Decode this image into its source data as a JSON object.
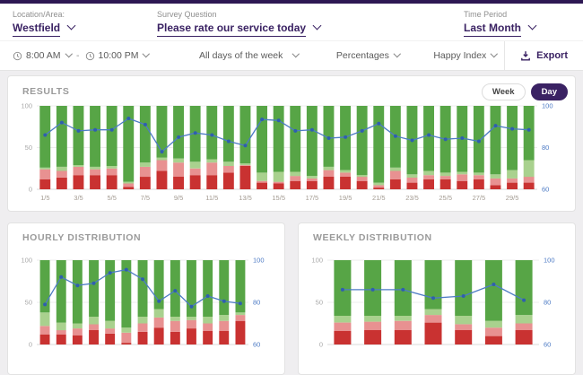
{
  "header": {
    "filters": [
      {
        "label": "Location/Area:",
        "value": "Westfield"
      },
      {
        "label": "Survey Question",
        "value": "Please rate our service today"
      },
      {
        "label": "Time Period",
        "value": "Last Month"
      }
    ]
  },
  "toolbar": {
    "time_from": "8:00 AM",
    "time_separator": "-",
    "time_to": "10:00 PM",
    "days_filter": "All days of the week",
    "metric_filter": "Percentages",
    "index_filter": "Happy Index",
    "export_label": "Export"
  },
  "results_toggle": {
    "options": [
      "Week",
      "Day"
    ],
    "selected": "Day"
  },
  "icons": {
    "clock": "clock-icon",
    "chevron_down": "chevron-down-icon",
    "export": "download-icon"
  },
  "colors": {
    "brand_purple": "#3a2263",
    "top_strip": "#2d1853",
    "green": "#57a546",
    "light_green": "#a9d18e",
    "light_red": "#e89191",
    "red": "#c93231",
    "line": "#4d7bc5",
    "dot": "#2f5fae",
    "axis_right": "#4d7bc5",
    "axis_left_text": "#a8a8a8",
    "grid": "#ececec"
  },
  "chart_data": [
    {
      "id": "results",
      "title": "RESULTS",
      "type": "stacked-bar-with-line",
      "categories": [
        "1/5",
        "2/5",
        "3/5",
        "4/5",
        "5/5",
        "6/5",
        "7/5",
        "8/5",
        "9/5",
        "10/5",
        "11/5",
        "12/5",
        "13/5",
        "14/5",
        "15/5",
        "16/5",
        "17/5",
        "18/5",
        "19/5",
        "20/5",
        "21/5",
        "22/5",
        "23/5",
        "24/5",
        "25/5",
        "26/5",
        "27/5",
        "28/5",
        "29/5",
        "30/5"
      ],
      "x_tick_every": 2,
      "left_axis": {
        "range": [
          0,
          100
        ],
        "ticks": [
          0,
          50,
          100
        ]
      },
      "right_axis": {
        "range": [
          60,
          100
        ],
        "ticks": [
          60,
          80,
          100
        ]
      },
      "series": [
        {
          "name": "red",
          "color": "red",
          "values": [
            12,
            14,
            17,
            17,
            17,
            3,
            15,
            22,
            15,
            17,
            17,
            20,
            28,
            8,
            7,
            10,
            10,
            15,
            15,
            10,
            2,
            12,
            8,
            12,
            12,
            10,
            12,
            5,
            8,
            8
          ]
        },
        {
          "name": "light_red",
          "color": "light_red",
          "values": [
            12,
            8,
            10,
            7,
            8,
            4,
            12,
            13,
            17,
            8,
            15,
            8,
            1,
            2,
            2,
            6,
            3,
            8,
            5,
            5,
            3,
            10,
            6,
            5,
            4,
            8,
            5,
            8,
            5,
            7
          ]
        },
        {
          "name": "light_green",
          "color": "light_green",
          "values": [
            2,
            5,
            2,
            3,
            3,
            2,
            5,
            3,
            5,
            8,
            4,
            5,
            2,
            10,
            12,
            5,
            3,
            4,
            3,
            2,
            3,
            4,
            4,
            5,
            4,
            3,
            3,
            5,
            10,
            20
          ]
        },
        {
          "name": "green",
          "color": "green",
          "values": [
            74,
            73,
            71,
            73,
            72,
            91,
            68,
            62,
            63,
            67,
            64,
            67,
            69,
            80,
            79,
            79,
            84,
            73,
            77,
            83,
            92,
            74,
            82,
            78,
            80,
            79,
            80,
            82,
            77,
            65
          ]
        }
      ],
      "line": {
        "name": "happy_index",
        "values": [
          86,
          92,
          88,
          88.5,
          88.5,
          94,
          91,
          78,
          85,
          87,
          86,
          83,
          81,
          93.5,
          93,
          88,
          88.5,
          84.5,
          85,
          88,
          91.5,
          85.5,
          83.5,
          86,
          84,
          84.5,
          83,
          90.5,
          89,
          88.5
        ]
      },
      "layout": {
        "ml": 24,
        "mr": 34,
        "mt": 5,
        "mb": 14,
        "bar_ratio": 0.64,
        "max_bar": 12
      }
    },
    {
      "id": "hourly",
      "title": "HOURLY DISTRIBUTION",
      "type": "stacked-bar-with-line",
      "categories": [
        "",
        "",
        "",
        "",
        "",
        "",
        "",
        "",
        "",
        "",
        "",
        "",
        ""
      ],
      "x_tick_every": 0,
      "left_axis": {
        "range": [
          0,
          100
        ],
        "ticks": [
          0,
          50,
          100
        ]
      },
      "right_axis": {
        "range": [
          60,
          100
        ],
        "ticks": [
          60,
          80,
          100
        ]
      },
      "series": [
        {
          "name": "red",
          "color": "red",
          "values": [
            12,
            12,
            11,
            17,
            13,
            2,
            15,
            20,
            15,
            19,
            16,
            16,
            28
          ]
        },
        {
          "name": "light_red",
          "color": "light_red",
          "values": [
            10,
            5,
            8,
            7,
            6,
            12,
            10,
            12,
            13,
            10,
            9,
            12,
            7
          ]
        },
        {
          "name": "light_green",
          "color": "light_green",
          "values": [
            16,
            9,
            6,
            9,
            9,
            6,
            8,
            10,
            5,
            4,
            8,
            7,
            3
          ]
        },
        {
          "name": "green",
          "color": "green",
          "values": [
            62,
            74,
            75,
            67,
            72,
            80,
            67,
            58,
            67,
            67,
            67,
            65,
            62
          ]
        }
      ],
      "line": {
        "name": "happy_index",
        "values": [
          79,
          92,
          88,
          89,
          94,
          95.5,
          91,
          80.5,
          85.5,
          78,
          83,
          80.5,
          79.5
        ]
      },
      "layout": {
        "ml": 24,
        "mr": 32,
        "mt": 13,
        "mb": 11,
        "bar_ratio": 0.6,
        "max_bar": 12
      }
    },
    {
      "id": "weekly",
      "title": "WEEKLY DISTRIBUTION",
      "type": "stacked-bar-with-line",
      "categories": [
        "",
        "",
        "",
        "",
        "",
        "",
        ""
      ],
      "x_tick_every": 0,
      "left_axis": {
        "range": [
          0,
          100
        ],
        "ticks": [
          0,
          50,
          100
        ]
      },
      "right_axis": {
        "range": [
          60,
          100
        ],
        "ticks": [
          60,
          80,
          100
        ]
      },
      "series": [
        {
          "name": "red",
          "color": "red",
          "values": [
            16,
            17,
            17,
            26,
            17,
            10,
            17
          ]
        },
        {
          "name": "light_red",
          "color": "light_red",
          "values": [
            10,
            10,
            11,
            9,
            7,
            10,
            8
          ]
        },
        {
          "name": "light_green",
          "color": "light_green",
          "values": [
            8,
            7,
            6,
            7,
            10,
            8,
            10
          ]
        },
        {
          "name": "green",
          "color": "green",
          "values": [
            66,
            66,
            66,
            58,
            66,
            72,
            65
          ]
        }
      ],
      "line": {
        "name": "happy_index",
        "values": [
          86,
          86,
          86,
          82,
          83,
          88.5,
          81
        ]
      },
      "layout": {
        "ml": 24,
        "mr": 32,
        "mt": 13,
        "mb": 11,
        "bar_ratio": 0.58,
        "max_bar": 19
      }
    }
  ]
}
